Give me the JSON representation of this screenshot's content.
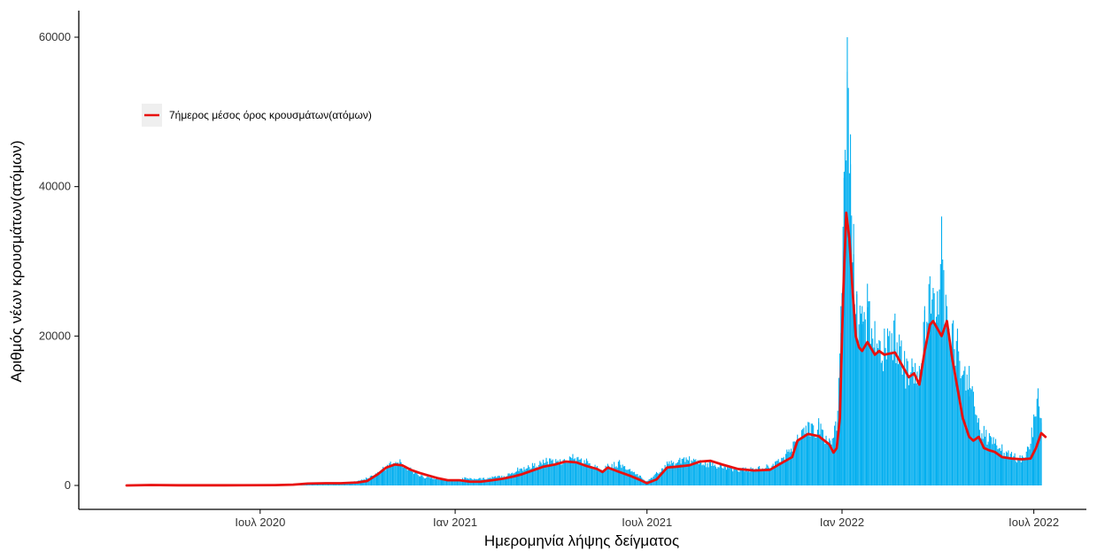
{
  "chart_data": {
    "type": "bar",
    "xlabel": "Ημερομηνία λήψης δείγματος",
    "ylabel": "Αριθμός νέων κρουσμάτων(ατόμων)",
    "x_range": [
      "2020-02-26",
      "2022-07-18"
    ],
    "x_ticks": [
      {
        "date": "2020-07-01",
        "label": "Ιουλ 2020"
      },
      {
        "date": "2021-01-01",
        "label": "Ιαν 2021"
      },
      {
        "date": "2021-07-01",
        "label": "Ιουλ 2021"
      },
      {
        "date": "2022-01-01",
        "label": "Ιαν 2022"
      },
      {
        "date": "2022-07-01",
        "label": "Ιουλ 2022"
      }
    ],
    "ylim": [
      0,
      63000
    ],
    "y_ticks": [
      0,
      20000,
      40000,
      60000
    ],
    "grid": false,
    "legend": {
      "position": "top-left",
      "entries": [
        "7ήμερος μέσος όρος κρουσμάτων(ατόμων)"
      ]
    },
    "colors": {
      "bars": "#00AEEF",
      "line": "#E8110F",
      "axis": "#000000",
      "legend_bg": "#EFEFEF"
    },
    "series": [
      {
        "kind": "bar",
        "description_from_axis": "daily new cases",
        "x": [
          "2020-03-15",
          "2020-04-01",
          "2020-05-01",
          "2020-06-01",
          "2020-07-01",
          "2020-08-01",
          "2020-08-20",
          "2020-09-10",
          "2020-09-25",
          "2020-10-05",
          "2020-10-20",
          "2020-10-25",
          "2020-11-01",
          "2020-11-10",
          "2020-11-20",
          "2020-11-30",
          "2020-12-10",
          "2020-12-20",
          "2021-01-01",
          "2021-01-10",
          "2021-01-25",
          "2021-02-05",
          "2021-02-20",
          "2021-03-01",
          "2021-03-15",
          "2021-03-28",
          "2021-04-10",
          "2021-04-22",
          "2021-05-05",
          "2021-05-15",
          "2021-05-25",
          "2021-06-05",
          "2021-06-15",
          "2021-06-25",
          "2021-07-01",
          "2021-07-10",
          "2021-07-20",
          "2021-08-01",
          "2021-08-10",
          "2021-08-20",
          "2021-09-01",
          "2021-09-15",
          "2021-09-30",
          "2021-10-15",
          "2021-10-30",
          "2021-11-10",
          "2021-11-20",
          "2021-11-30",
          "2021-12-10",
          "2021-12-20",
          "2021-12-25",
          "2021-12-28",
          "2021-12-31",
          "2022-01-03",
          "2022-01-06",
          "2022-01-09",
          "2022-01-12",
          "2022-01-15",
          "2022-01-20",
          "2022-01-25",
          "2022-02-01",
          "2022-02-10",
          "2022-02-20",
          "2022-03-01",
          "2022-03-08",
          "2022-03-15",
          "2022-03-20",
          "2022-03-25",
          "2022-04-01",
          "2022-04-05",
          "2022-04-10",
          "2022-04-20",
          "2022-05-01",
          "2022-05-10",
          "2022-05-20",
          "2022-06-01",
          "2022-06-10",
          "2022-06-20",
          "2022-06-25",
          "2022-07-01",
          "2022-07-05",
          "2022-07-08"
        ],
        "values": [
          40,
          30,
          20,
          40,
          60,
          200,
          250,
          400,
          500,
          800,
          1800,
          2500,
          3200,
          3500,
          2400,
          1400,
          1100,
          900,
          800,
          1100,
          1000,
          1200,
          1600,
          2400,
          3000,
          3700,
          3500,
          4200,
          3600,
          2600,
          2900,
          3400,
          2200,
          1300,
          600,
          1800,
          3200,
          3700,
          3900,
          3400,
          3200,
          2700,
          2400,
          2600,
          3200,
          4800,
          6800,
          8500,
          9000,
          6300,
          8000,
          10000,
          24000,
          42000,
          60000,
          47000,
          35000,
          26000,
          24000,
          27000,
          22000,
          21000,
          23000,
          18000,
          17000,
          16000,
          24000,
          28000,
          26000,
          36000,
          24000,
          21000,
          16000,
          9000,
          7000,
          5500,
          4500,
          4000,
          5200,
          9500,
          13000,
          9000
        ]
      },
      {
        "kind": "line",
        "name": "7ήμερος μέσος όρος κρουσμάτων(ατόμων)",
        "x": [
          "2020-02-26",
          "2020-03-20",
          "2020-04-15",
          "2020-05-15",
          "2020-06-15",
          "2020-07-15",
          "2020-08-01",
          "2020-08-15",
          "2020-09-01",
          "2020-09-15",
          "2020-10-01",
          "2020-10-10",
          "2020-10-20",
          "2020-10-28",
          "2020-11-05",
          "2020-11-12",
          "2020-11-20",
          "2020-11-28",
          "2020-12-05",
          "2020-12-15",
          "2020-12-25",
          "2021-01-05",
          "2021-01-15",
          "2021-01-25",
          "2021-02-05",
          "2021-02-15",
          "2021-02-25",
          "2021-03-05",
          "2021-03-15",
          "2021-03-25",
          "2021-04-05",
          "2021-04-15",
          "2021-04-25",
          "2021-05-05",
          "2021-05-15",
          "2021-05-20",
          "2021-05-25",
          "2021-06-05",
          "2021-06-15",
          "2021-06-25",
          "2021-07-01",
          "2021-07-10",
          "2021-07-20",
          "2021-07-28",
          "2021-08-10",
          "2021-08-20",
          "2021-08-30",
          "2021-09-10",
          "2021-09-25",
          "2021-10-10",
          "2021-10-25",
          "2021-11-05",
          "2021-11-15",
          "2021-11-20",
          "2021-11-30",
          "2021-12-10",
          "2021-12-20",
          "2021-12-24",
          "2021-12-27",
          "2021-12-30",
          "2022-01-02",
          "2022-01-05",
          "2022-01-08",
          "2022-01-11",
          "2022-01-14",
          "2022-01-17",
          "2022-01-20",
          "2022-01-25",
          "2022-02-01",
          "2022-02-05",
          "2022-02-10",
          "2022-02-20",
          "2022-03-01",
          "2022-03-05",
          "2022-03-10",
          "2022-03-15",
          "2022-03-20",
          "2022-03-25",
          "2022-03-28",
          "2022-04-01",
          "2022-04-05",
          "2022-04-10",
          "2022-04-15",
          "2022-04-20",
          "2022-04-25",
          "2022-05-01",
          "2022-05-05",
          "2022-05-10",
          "2022-05-15",
          "2022-05-20",
          "2022-05-25",
          "2022-06-01",
          "2022-06-10",
          "2022-06-20",
          "2022-06-28",
          "2022-07-03",
          "2022-07-08",
          "2022-07-12"
        ],
        "values": [
          0,
          60,
          20,
          20,
          30,
          40,
          100,
          250,
          300,
          300,
          400,
          600,
          1500,
          2400,
          2800,
          2700,
          2100,
          1700,
          1400,
          1000,
          700,
          700,
          500,
          500,
          700,
          900,
          1200,
          1500,
          2000,
          2500,
          2800,
          3200,
          3100,
          2600,
          2200,
          1800,
          2400,
          1800,
          1300,
          700,
          300,
          800,
          2400,
          2500,
          2700,
          3200,
          3300,
          2800,
          2200,
          2000,
          2100,
          3000,
          3800,
          6000,
          6900,
          6600,
          5500,
          4400,
          5000,
          9000,
          25000,
          36500,
          33000,
          26000,
          20000,
          18500,
          18000,
          19200,
          17500,
          18000,
          17500,
          17800,
          15500,
          14500,
          15000,
          13500,
          18000,
          21500,
          22000,
          21000,
          20000,
          22000,
          17000,
          13000,
          9000,
          6500,
          6000,
          6500,
          5000,
          4700,
          4500,
          3800,
          3600,
          3500,
          3600,
          5000,
          7000,
          6500
        ]
      }
    ]
  }
}
